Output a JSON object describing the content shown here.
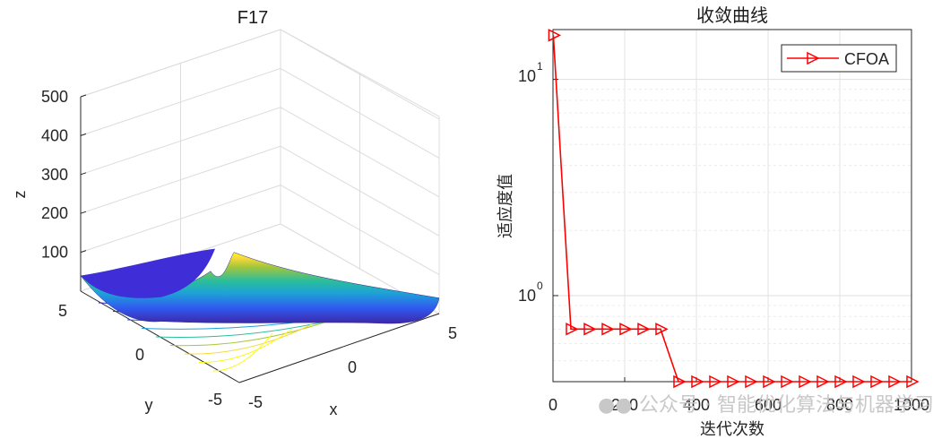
{
  "chart_data": [
    {
      "type": "surface3d",
      "title": "F17",
      "xlabel": "x",
      "ylabel": "y",
      "zlabel": "z",
      "xlim": [
        -5,
        5
      ],
      "ylim": [
        -5,
        5
      ],
      "zlim": [
        0,
        500
      ],
      "x_ticks": [
        "-5",
        "0",
        "5"
      ],
      "y_ticks": [
        "-5",
        "0",
        "5"
      ],
      "z_ticks": [
        "100",
        "200",
        "300",
        "400",
        "500"
      ],
      "z_tick_values": [
        100,
        200,
        300,
        400,
        500
      ],
      "corner_z": {
        "near": 335,
        "left": 40,
        "right": 40,
        "back": 60
      },
      "colormap": [
        "#3e26a8",
        "#2f5bf0",
        "#1ea1d8",
        "#2bbe9a",
        "#a7c63a",
        "#fad93a",
        "#f9fb0e"
      ],
      "contour_projection": true
    },
    {
      "type": "line",
      "yscale": "log",
      "title": "收敛曲线",
      "xlabel": "迭代次数",
      "ylabel": "适应度值",
      "xlim": [
        0,
        1000
      ],
      "ylim": [
        0.4,
        17
      ],
      "x_ticks": [
        "0",
        "200",
        "400",
        "600",
        "800",
        "1000"
      ],
      "x_tick_values": [
        0,
        200,
        400,
        600,
        800,
        1000
      ],
      "y_ticks": [
        "10",
        "10"
      ],
      "y_tick_exponents": [
        "1",
        "0"
      ],
      "y_tick_values": [
        10,
        1
      ],
      "legend_position": "top-right",
      "grid": true,
      "series": [
        {
          "name": "CFOA",
          "color": "#ff0000",
          "marker": "triangle-right",
          "x": [
            1,
            50,
            100,
            150,
            200,
            250,
            300,
            350,
            400,
            450,
            500,
            550,
            600,
            650,
            700,
            750,
            800,
            850,
            900,
            950,
            1000
          ],
          "values": [
            16,
            0.7,
            0.7,
            0.7,
            0.7,
            0.7,
            0.7,
            0.4,
            0.4,
            0.4,
            0.4,
            0.4,
            0.4,
            0.4,
            0.4,
            0.4,
            0.4,
            0.4,
            0.4,
            0.4,
            0.4
          ]
        }
      ]
    }
  ],
  "watermark": "公众号 · 智能优化算法与机器学习",
  "watermark_glyph": "●●"
}
